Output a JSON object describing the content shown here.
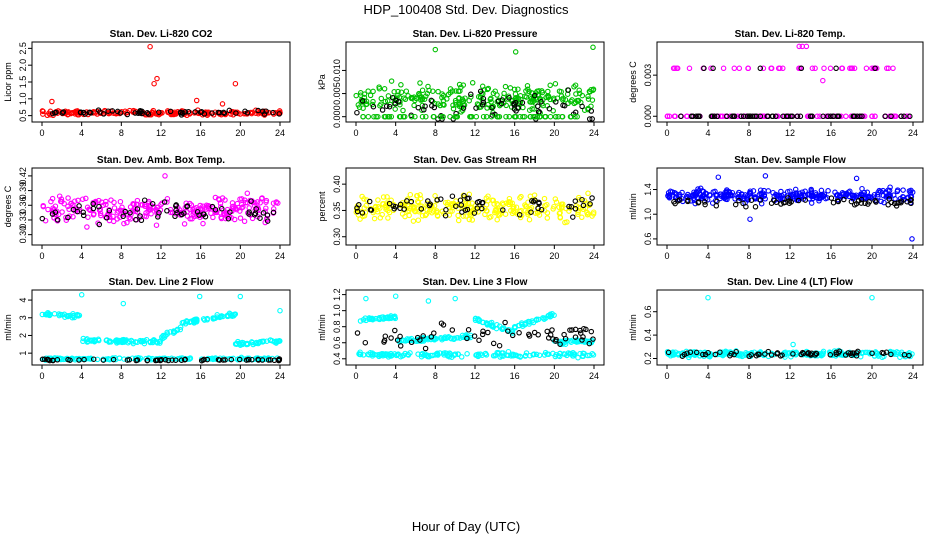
{
  "figure": {
    "title": "HDP_100408  Std. Dev. Diagnostics",
    "xlabel": "Hour of Day (UTC)"
  },
  "chart_data": [
    {
      "type": "scatter",
      "title": "Stan. Dev. Li-820 CO2",
      "ylabel": "Licor ppm",
      "xlim": [
        0,
        24
      ],
      "ylim": [
        0.4,
        2.6
      ],
      "xticks": [
        "0",
        "4",
        "8",
        "12",
        "16",
        "20",
        "24"
      ],
      "yticks": [
        "0.5",
        "1.0",
        "1.5",
        "2.0",
        "2.5"
      ],
      "ytick_values": [
        0.5,
        1.0,
        1.5,
        2.0,
        2.5
      ],
      "series": [
        {
          "name": "all",
          "color": "#ff0000",
          "base": 0.58,
          "spread": 0.06,
          "n": 190,
          "points": [
            [
              10.9,
              2.55
            ],
            [
              11.3,
              1.45
            ],
            [
              11.6,
              1.6
            ],
            [
              19.5,
              1.45
            ],
            [
              1.0,
              0.92
            ],
            [
              15.6,
              0.95
            ],
            [
              18.2,
              0.85
            ]
          ]
        },
        {
          "name": "hourly",
          "color": "#000000",
          "base": 0.6,
          "spread": 0.06,
          "n": 55,
          "points": []
        }
      ]
    },
    {
      "type": "scatter",
      "title": "Stan. Dev. Li-820 Pressure",
      "ylabel": "kPa",
      "xlim": [
        0,
        24
      ],
      "ylim": [
        -0.0005,
        0.0155
      ],
      "xticks": [
        "0",
        "4",
        "8",
        "12",
        "16",
        "20",
        "24"
      ],
      "yticks": [
        "0.000",
        "0.005",
        "0.010"
      ],
      "ytick_values": [
        0.0,
        0.005,
        0.01
      ],
      "series": [
        {
          "name": "all",
          "color": "#00c000",
          "base": 0.004,
          "spread": 0.0023,
          "n": 260,
          "points": [
            [
              8.0,
              0.0145
            ],
            [
              16.1,
              0.014
            ],
            [
              23.9,
              0.015
            ]
          ]
        },
        {
          "name": "hourly",
          "color": "#000000",
          "base": 0.002,
          "spread": 0.0025,
          "n": 60,
          "points": []
        },
        {
          "name": "floor",
          "color": "#00c000",
          "base": 0.0,
          "spread": 0.0,
          "n": 70,
          "points": []
        }
      ]
    },
    {
      "type": "scatter",
      "title": "Stan. Dev. Li-820 Temp.",
      "ylabel": "degrees C",
      "xlim": [
        0,
        24
      ],
      "ylim": [
        -0.0002,
        0.0052
      ],
      "xticks": [
        "0",
        "4",
        "8",
        "12",
        "16",
        "20",
        "24"
      ],
      "yticks": [
        "0.000",
        "0.003"
      ],
      "ytick_values": [
        0.0,
        0.003
      ],
      "series": [
        {
          "name": "zero",
          "color": "#ff00ff",
          "base": 0.0,
          "spread": 0.0,
          "n": 90,
          "points": []
        },
        {
          "name": "level",
          "color": "#ff00ff",
          "base": 0.0035,
          "spread": 0.0,
          "n": 40,
          "points": [
            [
              13.2,
              0.0051
            ],
            [
              13.6,
              0.0051
            ],
            [
              12.9,
              0.0051
            ],
            [
              15.2,
              0.0026
            ]
          ]
        },
        {
          "name": "hourly",
          "color": "#000000",
          "base": 0.0,
          "spread": 0.0,
          "n": 60,
          "points": [
            [
              3.6,
              0.0035
            ],
            [
              4.5,
              0.0035
            ],
            [
              9.1,
              0.0035
            ],
            [
              13.1,
              0.0035
            ],
            [
              16.5,
              0.0035
            ],
            [
              20.3,
              0.0035
            ]
          ]
        }
      ]
    },
    {
      "type": "scatter",
      "title": "Stan. Dev. Amb. Box Temp.",
      "ylabel": "degrees C",
      "xlim": [
        0,
        24
      ],
      "ylim": [
        0.285,
        0.43
      ],
      "xticks": [
        "0",
        "4",
        "8",
        "12",
        "16",
        "20",
        "24"
      ],
      "yticks": [
        "0.30",
        "0.33",
        "0.36",
        "0.39",
        "0.42"
      ],
      "ytick_values": [
        0.3,
        0.33,
        0.36,
        0.39,
        0.42
      ],
      "series": [
        {
          "name": "all",
          "color": "#ff00ff",
          "base": 0.35,
          "spread": 0.022,
          "n": 280,
          "points": [
            [
              12.4,
              0.42
            ]
          ]
        },
        {
          "name": "hourly",
          "color": "#000000",
          "base": 0.345,
          "spread": 0.018,
          "n": 60,
          "points": []
        }
      ]
    },
    {
      "type": "scatter",
      "title": "Stan. Dev. Gas Stream RH",
      "ylabel": "percent",
      "xlim": [
        0,
        24
      ],
      "ylim": [
        0.29,
        0.425
      ],
      "xticks": [
        "0",
        "4",
        "8",
        "12",
        "16",
        "20",
        "24"
      ],
      "yticks": [
        "0.30",
        "0.35",
        "0.40"
      ],
      "ytick_values": [
        0.3,
        0.35,
        0.4
      ],
      "series": [
        {
          "name": "all",
          "color": "#ffff00",
          "base": 0.355,
          "spread": 0.02,
          "n": 280,
          "points": []
        },
        {
          "name": "hourly",
          "color": "#000000",
          "base": 0.36,
          "spread": 0.016,
          "n": 60,
          "points": []
        }
      ]
    },
    {
      "type": "scatter",
      "title": "Stan. Dev. Sample Flow",
      "ylabel": "ml/min",
      "xlim": [
        0,
        24
      ],
      "ylim": [
        0.55,
        1.7
      ],
      "xticks": [
        "0",
        "4",
        "8",
        "12",
        "16",
        "20",
        "24"
      ],
      "yticks": [
        "0.6",
        "1.0",
        "1.4"
      ],
      "ytick_values": [
        0.6,
        1.0,
        1.4
      ],
      "series": [
        {
          "name": "all",
          "color": "#0000ff",
          "base": 1.3,
          "spread": 0.09,
          "n": 300,
          "points": [
            [
              23.9,
              0.6
            ],
            [
              8.1,
              0.92
            ],
            [
              5.0,
              1.6
            ],
            [
              9.6,
              1.62
            ],
            [
              18.5,
              1.58
            ]
          ]
        },
        {
          "name": "hourly",
          "color": "#000000",
          "base": 1.2,
          "spread": 0.06,
          "n": 60,
          "points": []
        }
      ]
    },
    {
      "type": "scatter",
      "title": "Stan. Dev. Line 2 Flow",
      "ylabel": "ml/min",
      "xlim": [
        0,
        24
      ],
      "ylim": [
        0.5,
        4.4
      ],
      "xticks": [
        "0",
        "4",
        "8",
        "12",
        "16",
        "20",
        "24"
      ],
      "yticks": [
        "1",
        "2",
        "3",
        "4"
      ],
      "ytick_values": [
        1,
        2,
        3,
        4
      ],
      "segments": [
        {
          "x0": 0.0,
          "x1": 3.8,
          "y0": 3.2,
          "y1": 3.1
        },
        {
          "x0": 4.0,
          "x1": 12.0,
          "y0": 1.7,
          "y1": 1.65
        },
        {
          "x0": 12.0,
          "x1": 14.0,
          "y0": 1.9,
          "y1": 2.4
        },
        {
          "x0": 14.0,
          "x1": 19.5,
          "y0": 2.7,
          "y1": 3.2
        },
        {
          "x0": 19.5,
          "x1": 24.0,
          "y0": 1.5,
          "y1": 1.7
        }
      ],
      "series": [
        {
          "name": "floor",
          "color": "#00ffff",
          "base": 0.68,
          "spread": 0.05,
          "n": 140,
          "points": [
            [
              4.0,
              4.3
            ],
            [
              8.2,
              3.8
            ],
            [
              15.9,
              4.2
            ],
            [
              20.0,
              4.2
            ],
            [
              24.0,
              3.4
            ]
          ]
        },
        {
          "name": "hourly",
          "color": "#000000",
          "base": 0.62,
          "spread": 0.04,
          "n": 60,
          "points": []
        }
      ]
    },
    {
      "type": "scatter",
      "title": "Stan. Dev. Line 3 Flow",
      "ylabel": "ml/min",
      "xlim": [
        0,
        24
      ],
      "ylim": [
        0.36,
        1.22
      ],
      "xticks": [
        "0",
        "4",
        "8",
        "12",
        "16",
        "20",
        "24"
      ],
      "yticks": [
        "0.4",
        "0.6",
        "0.8",
        "1.0",
        "1.2"
      ],
      "ytick_values": [
        0.4,
        0.6,
        0.8,
        1.0,
        1.2
      ],
      "segments": [
        {
          "x0": 0.0,
          "x1": 4.0,
          "y0": 0.88,
          "y1": 0.92
        },
        {
          "x0": 4.0,
          "x1": 12.0,
          "y0": 0.62,
          "y1": 0.68
        },
        {
          "x0": 12.0,
          "x1": 16.0,
          "y0": 0.9,
          "y1": 0.72
        },
        {
          "x0": 16.0,
          "x1": 20.0,
          "y0": 0.8,
          "y1": 0.95
        },
        {
          "x0": 20.0,
          "x1": 24.0,
          "y0": 0.6,
          "y1": 0.62
        }
      ],
      "series": [
        {
          "name": "floor",
          "color": "#00ffff",
          "base": 0.45,
          "spread": 0.025,
          "n": 160,
          "points": [
            [
              1.0,
              1.15
            ],
            [
              4.0,
              1.18
            ],
            [
              7.3,
              1.12
            ],
            [
              10.0,
              1.15
            ]
          ]
        },
        {
          "name": "hourly",
          "color": "#000000",
          "base": 0.7,
          "spread": 0.13,
          "n": 60,
          "points": []
        }
      ]
    },
    {
      "type": "scatter",
      "title": "Stan. Dev. Line 4 (LT) Flow",
      "ylabel": "ml/min",
      "xlim": [
        0,
        24
      ],
      "ylim": [
        0.17,
        0.76
      ],
      "xticks": [
        "0",
        "4",
        "8",
        "12",
        "16",
        "20",
        "24"
      ],
      "yticks": [
        "0.2",
        "0.4",
        "0.6"
      ],
      "ytick_values": [
        0.2,
        0.4,
        0.6
      ],
      "series": [
        {
          "name": "all",
          "color": "#00ffff",
          "base": 0.24,
          "spread": 0.02,
          "n": 240,
          "points": [
            [
              4.0,
              0.72
            ],
            [
              20.0,
              0.72
            ],
            [
              12.3,
              0.32
            ]
          ]
        },
        {
          "name": "hourly",
          "color": "#000000",
          "base": 0.24,
          "spread": 0.018,
          "n": 60,
          "points": []
        }
      ]
    }
  ]
}
